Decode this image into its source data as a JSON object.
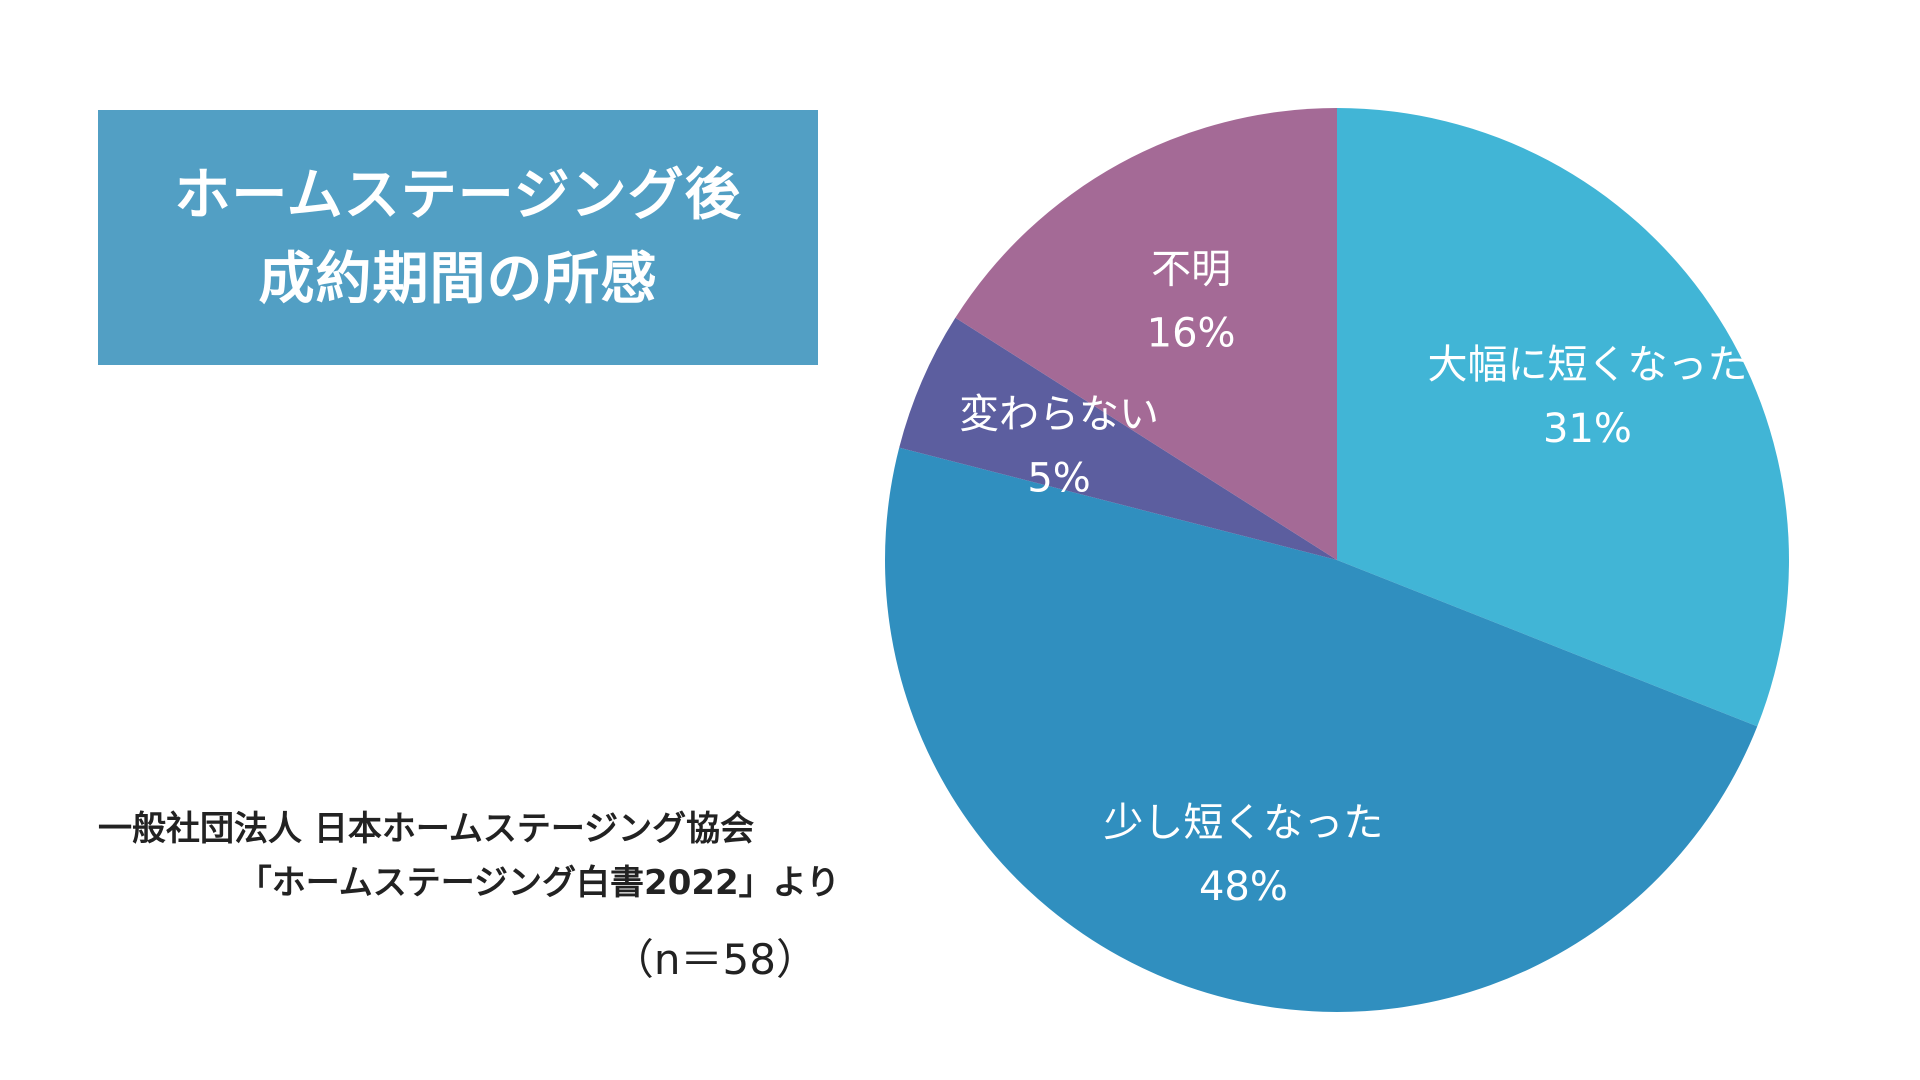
{
  "title": {
    "line1": "ホームステージング後",
    "line2": "成約期間の所感"
  },
  "source": {
    "line1": "一般社団法人  日本ホームステージング協会",
    "line2": "「ホームステージング白書2022」より"
  },
  "sample_size": "（n＝58）",
  "chart_data": {
    "type": "pie",
    "title": "ホームステージング後 成約期間の所感",
    "start": "12 o'clock",
    "direction": "clockwise",
    "slices": [
      {
        "label": "大幅に短くなった",
        "value": 31,
        "value_label": "31%",
        "color": "#41b5d6"
      },
      {
        "label": "少し短くなった",
        "value": 48,
        "value_label": "48%",
        "color": "#308fbf"
      },
      {
        "label": "変わらない",
        "value": 5,
        "value_label": "5%",
        "color": "#5c5e9f"
      },
      {
        "label": "不明",
        "value": 16,
        "value_label": "16%",
        "color": "#a46a96"
      }
    ]
  }
}
